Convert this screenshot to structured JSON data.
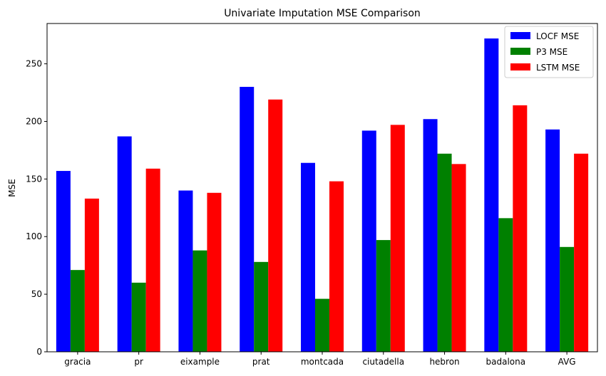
{
  "chart_data": {
    "type": "bar",
    "title": "Univariate Imputation MSE Comparison",
    "xlabel": "",
    "ylabel": "MSE",
    "categories": [
      "gracia",
      "pr",
      "eixample",
      "prat",
      "montcada",
      "ciutadella",
      "hebron",
      "badalona",
      "AVG"
    ],
    "series": [
      {
        "name": "LOCF MSE",
        "color": "#0000ff",
        "values": [
          157,
          187,
          140,
          230,
          164,
          192,
          202,
          272,
          193
        ]
      },
      {
        "name": "P3 MSE",
        "color": "#008000",
        "values": [
          71,
          60,
          88,
          78,
          46,
          97,
          172,
          116,
          91
        ]
      },
      {
        "name": "LSTM MSE",
        "color": "#ff0000",
        "values": [
          133,
          159,
          138,
          219,
          148,
          197,
          163,
          214,
          172
        ]
      }
    ],
    "ylim": [
      0,
      285
    ],
    "yticks": [
      0,
      50,
      100,
      150,
      200,
      250
    ],
    "grid": false,
    "legend_position": "top-right"
  }
}
